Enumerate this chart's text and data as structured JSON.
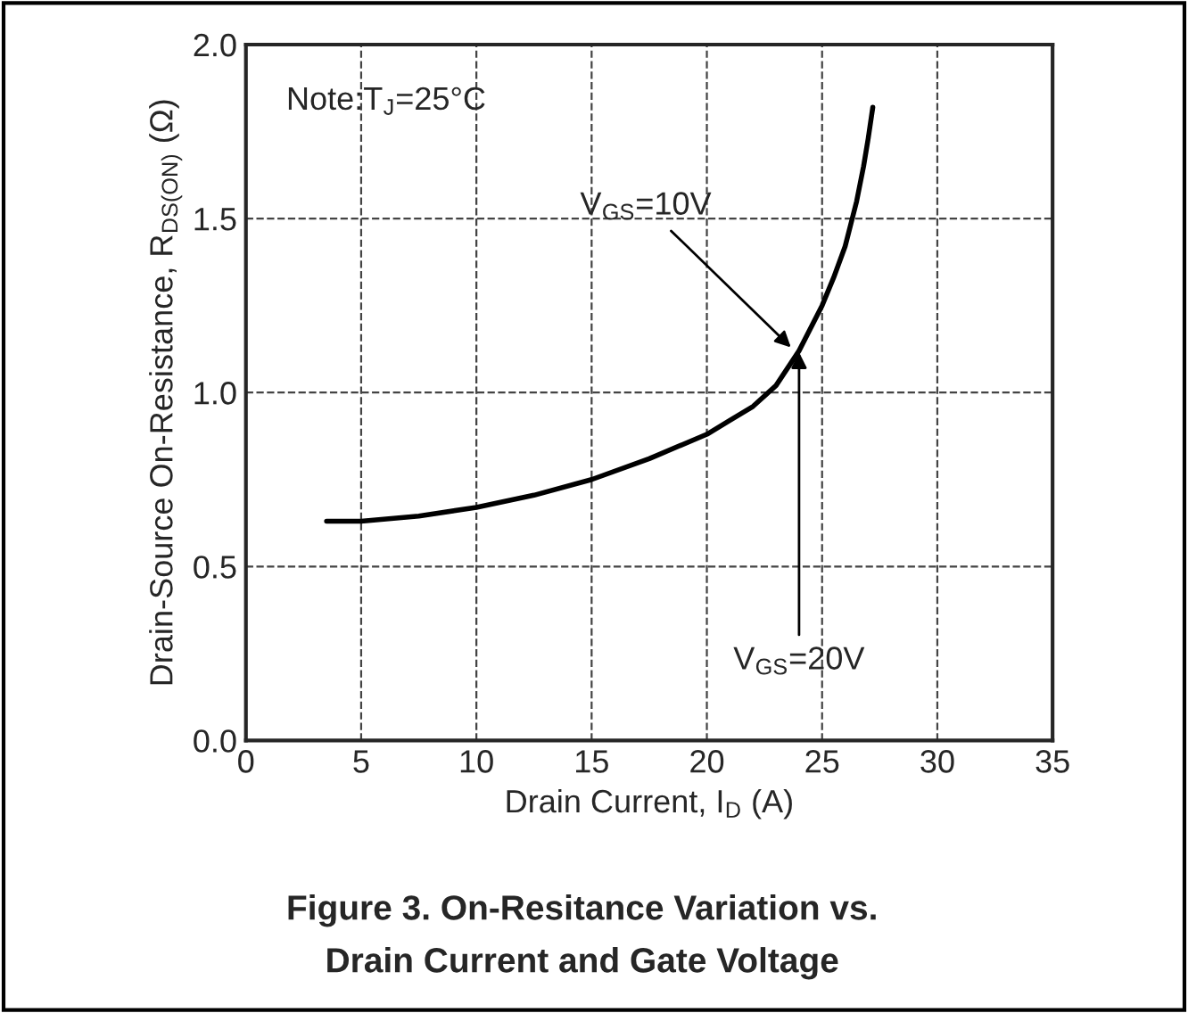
{
  "chart_data": {
    "type": "line",
    "title": "Figure 3. On-Resitance Variation vs.\nDrain Current and Gate Voltage",
    "xlabel": "Drain Current, I$_{D}$ (A)",
    "ylabel": "Drain-Source On-Resistance, R$_{DS(ON)}$ (Ω)",
    "x": [
      3.5,
      5,
      7.5,
      10,
      12.5,
      15,
      17.5,
      20,
      21,
      22,
      23,
      24,
      25,
      25.5,
      26,
      26.5,
      26.8,
      27,
      27.2
    ],
    "series": [
      {
        "color": "#000000",
        "values": [
          0.63,
          0.63,
          0.645,
          0.67,
          0.705,
          0.75,
          0.81,
          0.88,
          0.92,
          0.96,
          1.02,
          1.12,
          1.25,
          1.33,
          1.42,
          1.55,
          1.65,
          1.73,
          1.82
        ]
      }
    ],
    "annotations": [
      "Note:T$_{J}$=25°C",
      {
        "text": "V$_{GS}$=10V",
        "x": 23.8,
        "y": 1.12
      },
      {
        "text": "V$_{GS}$=20V",
        "x": 24,
        "y": 1.13
      }
    ],
    "xlim": [
      0,
      35
    ],
    "ylim": [
      0,
      2
    ],
    "xticks": [
      0,
      5,
      10,
      15,
      20,
      25,
      30,
      35
    ],
    "yticks": [
      {
        "value": 0,
        "label": "0.0"
      },
      {
        "value": 0.5,
        "label": "0.5"
      },
      {
        "value": 1,
        "label": "1.0"
      },
      {
        "value": 1.5,
        "label": "1.5"
      },
      {
        "value": 2,
        "label": "2.0"
      }
    ],
    "grid": true,
    "line_style": "solid",
    "marker": "none"
  }
}
